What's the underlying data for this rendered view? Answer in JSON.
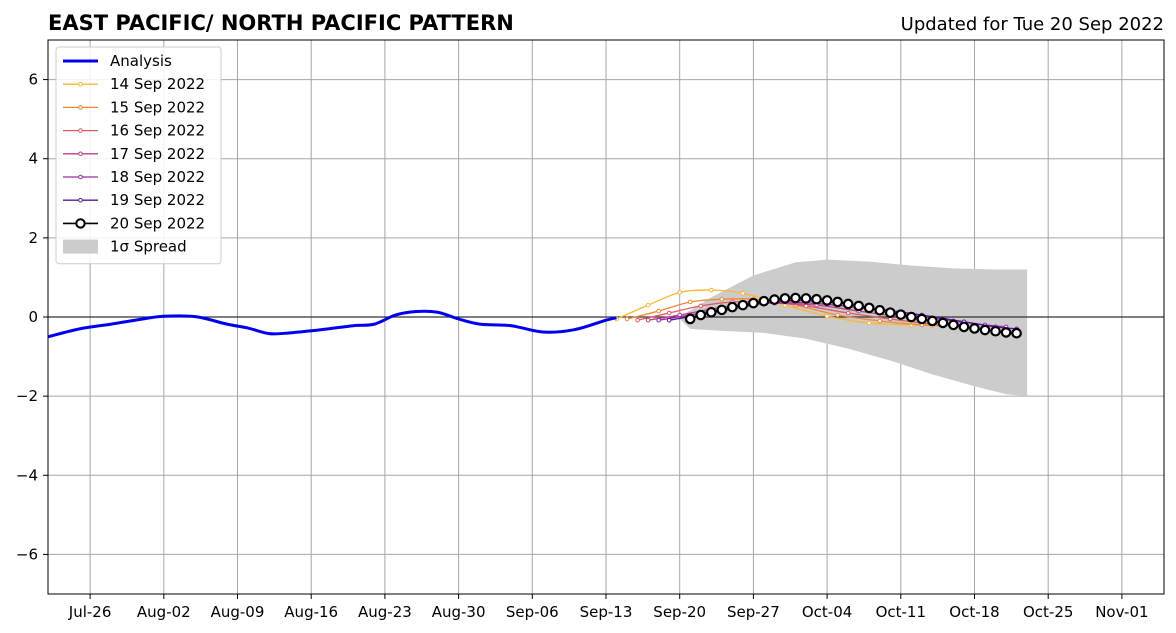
{
  "chart_data": {
    "type": "line",
    "title": "EAST PACIFIC/ NORTH PACIFIC PATTERN",
    "subtitle": "Updated for Tue 20 Sep 2022",
    "xlabel": "",
    "ylabel": "",
    "x_range": [
      "2022-07-22",
      "2022-11-05"
    ],
    "ylim": [
      -7,
      7
    ],
    "yticks": [
      -6,
      -4,
      -2,
      0,
      2,
      4,
      6
    ],
    "ytick_labels": [
      "−6",
      "−4",
      "−2",
      "0",
      "2",
      "4",
      "6"
    ],
    "xticks": [
      "2022-07-26",
      "2022-08-02",
      "2022-08-09",
      "2022-08-16",
      "2022-08-23",
      "2022-08-30",
      "2022-09-06",
      "2022-09-13",
      "2022-09-20",
      "2022-09-27",
      "2022-10-04",
      "2022-10-11",
      "2022-10-18",
      "2022-10-25",
      "2022-11-01"
    ],
    "xtick_labels": [
      "Jul-26",
      "Aug-02",
      "Aug-09",
      "Aug-16",
      "Aug-23",
      "Aug-30",
      "Sep-06",
      "Sep-13",
      "Sep-20",
      "Sep-27",
      "Oct-04",
      "Oct-11",
      "Oct-18",
      "Oct-25",
      "Nov-01"
    ],
    "grid": true,
    "legend_position": "top-left",
    "analysis": {
      "name": "Analysis",
      "color": "#0000ee",
      "points": [
        [
          "2022-07-22",
          -0.5
        ],
        [
          "2022-07-25",
          -0.3
        ],
        [
          "2022-07-28",
          -0.18
        ],
        [
          "2022-07-31",
          -0.05
        ],
        [
          "2022-08-02",
          0.02
        ],
        [
          "2022-08-05",
          0.01
        ],
        [
          "2022-08-08",
          -0.18
        ],
        [
          "2022-08-10",
          -0.28
        ],
        [
          "2022-08-12",
          -0.42
        ],
        [
          "2022-08-14",
          -0.4
        ],
        [
          "2022-08-17",
          -0.32
        ],
        [
          "2022-08-20",
          -0.22
        ],
        [
          "2022-08-22",
          -0.18
        ],
        [
          "2022-08-24",
          0.05
        ],
        [
          "2022-08-26",
          0.14
        ],
        [
          "2022-08-28",
          0.12
        ],
        [
          "2022-08-30",
          -0.05
        ],
        [
          "2022-09-01",
          -0.18
        ],
        [
          "2022-09-04",
          -0.22
        ],
        [
          "2022-09-07",
          -0.38
        ],
        [
          "2022-09-10",
          -0.32
        ],
        [
          "2022-09-13",
          -0.08
        ],
        [
          "2022-09-14",
          -0.02
        ]
      ]
    },
    "spread": {
      "name": "1σ Spread",
      "color": "#cccccc",
      "upper": [
        [
          "2022-09-20",
          0.0
        ],
        [
          "2022-09-23",
          0.5
        ],
        [
          "2022-09-27",
          1.05
        ],
        [
          "2022-10-01",
          1.38
        ],
        [
          "2022-10-04",
          1.45
        ],
        [
          "2022-10-08",
          1.4
        ],
        [
          "2022-10-12",
          1.3
        ],
        [
          "2022-10-16",
          1.23
        ],
        [
          "2022-10-20",
          1.2
        ],
        [
          "2022-10-23",
          1.2
        ]
      ],
      "lower": [
        [
          "2022-09-20",
          -0.05
        ],
        [
          "2022-09-21",
          -0.3
        ],
        [
          "2022-09-24",
          -0.35
        ],
        [
          "2022-09-28",
          -0.4
        ],
        [
          "2022-10-02",
          -0.55
        ],
        [
          "2022-10-06",
          -0.8
        ],
        [
          "2022-10-10",
          -1.1
        ],
        [
          "2022-10-14",
          -1.45
        ],
        [
          "2022-10-18",
          -1.75
        ],
        [
          "2022-10-21",
          -1.95
        ],
        [
          "2022-10-23",
          -2.0
        ]
      ]
    },
    "forecasts": [
      {
        "name": "14 Sep 2022",
        "color": "#fbb832",
        "points": [
          [
            "2022-09-14",
            -0.05
          ],
          [
            "2022-09-17",
            0.3
          ],
          [
            "2022-09-20",
            0.62
          ],
          [
            "2022-09-23",
            0.68
          ],
          [
            "2022-09-26",
            0.6
          ],
          [
            "2022-09-30",
            0.3
          ],
          [
            "2022-10-04",
            0.02
          ],
          [
            "2022-10-08",
            -0.15
          ],
          [
            "2022-10-12",
            -0.2
          ],
          [
            "2022-10-14",
            -0.22
          ]
        ]
      },
      {
        "name": "15 Sep 2022",
        "color": "#f0883a",
        "points": [
          [
            "2022-09-15",
            -0.05
          ],
          [
            "2022-09-18",
            0.15
          ],
          [
            "2022-09-21",
            0.38
          ],
          [
            "2022-09-24",
            0.45
          ],
          [
            "2022-09-27",
            0.45
          ],
          [
            "2022-10-01",
            0.3
          ],
          [
            "2022-10-05",
            0.05
          ],
          [
            "2022-10-09",
            -0.1
          ],
          [
            "2022-10-13",
            -0.2
          ],
          [
            "2022-10-15",
            -0.22
          ]
        ]
      },
      {
        "name": "16 Sep 2022",
        "color": "#de5a5f",
        "points": [
          [
            "2022-09-16",
            -0.08
          ],
          [
            "2022-09-19",
            0.1
          ],
          [
            "2022-09-22",
            0.28
          ],
          [
            "2022-09-25",
            0.38
          ],
          [
            "2022-09-28",
            0.38
          ],
          [
            "2022-10-02",
            0.28
          ],
          [
            "2022-10-06",
            0.1
          ],
          [
            "2022-10-10",
            -0.05
          ],
          [
            "2022-10-14",
            -0.18
          ],
          [
            "2022-10-16",
            -0.22
          ]
        ]
      },
      {
        "name": "17 Sep 2022",
        "color": "#bc3d8a",
        "points": [
          [
            "2022-09-17",
            -0.08
          ],
          [
            "2022-09-20",
            0.05
          ],
          [
            "2022-09-23",
            0.2
          ],
          [
            "2022-09-26",
            0.32
          ],
          [
            "2022-09-29",
            0.35
          ],
          [
            "2022-10-03",
            0.3
          ],
          [
            "2022-10-07",
            0.15
          ],
          [
            "2022-10-11",
            0.0
          ],
          [
            "2022-10-15",
            -0.15
          ],
          [
            "2022-10-17",
            -0.2
          ]
        ]
      },
      {
        "name": "18 Sep 2022",
        "color": "#9c2aa8",
        "points": [
          [
            "2022-09-18",
            -0.08
          ],
          [
            "2022-09-21",
            0.05
          ],
          [
            "2022-09-24",
            0.2
          ],
          [
            "2022-09-27",
            0.32
          ],
          [
            "2022-09-30",
            0.38
          ],
          [
            "2022-10-04",
            0.32
          ],
          [
            "2022-10-08",
            0.2
          ],
          [
            "2022-10-12",
            0.05
          ],
          [
            "2022-10-16",
            -0.1
          ],
          [
            "2022-10-19",
            -0.2
          ],
          [
            "2022-10-21",
            -0.25
          ]
        ]
      },
      {
        "name": "19 Sep 2022",
        "color": "#5a16a0",
        "points": [
          [
            "2022-09-19",
            -0.08
          ],
          [
            "2022-09-22",
            0.05
          ],
          [
            "2022-09-25",
            0.2
          ],
          [
            "2022-09-28",
            0.35
          ],
          [
            "2022-10-01",
            0.42
          ],
          [
            "2022-10-05",
            0.35
          ],
          [
            "2022-10-09",
            0.2
          ],
          [
            "2022-10-13",
            0.05
          ],
          [
            "2022-10-17",
            -0.12
          ],
          [
            "2022-10-20",
            -0.25
          ],
          [
            "2022-10-22",
            -0.3
          ]
        ]
      },
      {
        "name": "20 Sep 2022",
        "color": "#000000",
        "marker": "open-circle",
        "points": [
          [
            "2022-09-21",
            -0.05
          ],
          [
            "2022-09-22",
            0.05
          ],
          [
            "2022-09-23",
            0.12
          ],
          [
            "2022-09-24",
            0.18
          ],
          [
            "2022-09-25",
            0.25
          ],
          [
            "2022-09-26",
            0.3
          ],
          [
            "2022-09-27",
            0.35
          ],
          [
            "2022-09-28",
            0.4
          ],
          [
            "2022-09-29",
            0.44
          ],
          [
            "2022-09-30",
            0.47
          ],
          [
            "2022-10-01",
            0.48
          ],
          [
            "2022-10-02",
            0.47
          ],
          [
            "2022-10-03",
            0.45
          ],
          [
            "2022-10-04",
            0.42
          ],
          [
            "2022-10-05",
            0.38
          ],
          [
            "2022-10-06",
            0.33
          ],
          [
            "2022-10-07",
            0.28
          ],
          [
            "2022-10-08",
            0.23
          ],
          [
            "2022-10-09",
            0.17
          ],
          [
            "2022-10-10",
            0.11
          ],
          [
            "2022-10-11",
            0.06
          ],
          [
            "2022-10-12",
            0.0
          ],
          [
            "2022-10-13",
            -0.05
          ],
          [
            "2022-10-14",
            -0.1
          ],
          [
            "2022-10-15",
            -0.15
          ],
          [
            "2022-10-16",
            -0.2
          ],
          [
            "2022-10-17",
            -0.25
          ],
          [
            "2022-10-18",
            -0.29
          ],
          [
            "2022-10-19",
            -0.33
          ],
          [
            "2022-10-20",
            -0.36
          ],
          [
            "2022-10-21",
            -0.39
          ],
          [
            "2022-10-22",
            -0.41
          ]
        ]
      }
    ],
    "legend": [
      {
        "label": "Analysis",
        "kind": "thick-line",
        "color": "#0000ee"
      },
      {
        "label": "14 Sep 2022",
        "kind": "dot-line",
        "color": "#fbb832"
      },
      {
        "label": "15 Sep 2022",
        "kind": "dot-line",
        "color": "#f0883a"
      },
      {
        "label": "16 Sep 2022",
        "kind": "dot-line",
        "color": "#de5a5f"
      },
      {
        "label": "17 Sep 2022",
        "kind": "dot-line",
        "color": "#bc3d8a"
      },
      {
        "label": "18 Sep 2022",
        "kind": "dot-line",
        "color": "#9c2aa8"
      },
      {
        "label": "19 Sep 2022",
        "kind": "dot-line",
        "color": "#5a16a0"
      },
      {
        "label": "20 Sep 2022",
        "kind": "open-circle-line",
        "color": "#000000"
      },
      {
        "label": "1σ Spread",
        "kind": "patch",
        "color": "#cccccc"
      }
    ]
  }
}
